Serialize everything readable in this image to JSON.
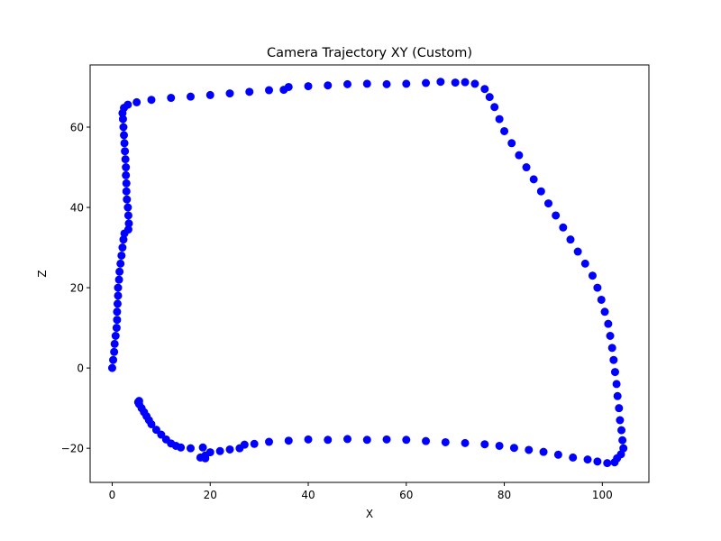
{
  "chart_data": {
    "type": "scatter",
    "title": "Camera Trajectory XY (Custom)",
    "xlabel": "X",
    "ylabel": "Z",
    "xlim": [
      -4.5,
      109.5
    ],
    "ylim": [
      -28.5,
      75.5
    ],
    "xticks": [
      0,
      20,
      40,
      60,
      80,
      100
    ],
    "yticks": [
      -20,
      0,
      20,
      40,
      60
    ],
    "grid": false,
    "legend": "none",
    "marker": "circle",
    "color": "#0000ff",
    "series": [
      {
        "points": [
          [
            0,
            0
          ],
          [
            0.2,
            2
          ],
          [
            0.4,
            4
          ],
          [
            0.5,
            6
          ],
          [
            0.7,
            8
          ],
          [
            0.9,
            10
          ],
          [
            1.0,
            12
          ],
          [
            1.0,
            14
          ],
          [
            1.1,
            16
          ],
          [
            1.2,
            18
          ],
          [
            1.2,
            20
          ],
          [
            1.4,
            22
          ],
          [
            1.5,
            24
          ],
          [
            1.7,
            26
          ],
          [
            1.9,
            28
          ],
          [
            2.1,
            30
          ],
          [
            2.3,
            32
          ],
          [
            2.5,
            33.5
          ],
          [
            3.3,
            34.5
          ],
          [
            3.4,
            36
          ],
          [
            3.3,
            38
          ],
          [
            3.2,
            40
          ],
          [
            3.0,
            42
          ],
          [
            2.9,
            44
          ],
          [
            2.9,
            46
          ],
          [
            2.8,
            48
          ],
          [
            2.8,
            50
          ],
          [
            2.7,
            52
          ],
          [
            2.6,
            54
          ],
          [
            2.5,
            56
          ],
          [
            2.4,
            58
          ],
          [
            2.3,
            60
          ],
          [
            2.2,
            62
          ],
          [
            2.1,
            63.5
          ],
          [
            2.4,
            64.8
          ],
          [
            3.2,
            65.6
          ],
          [
            5,
            66.2
          ],
          [
            8,
            66.8
          ],
          [
            12,
            67.3
          ],
          [
            16,
            67.6
          ],
          [
            20,
            68.0
          ],
          [
            24,
            68.4
          ],
          [
            28,
            68.8
          ],
          [
            32,
            69.2
          ],
          [
            35,
            69.3
          ],
          [
            36,
            70.0
          ],
          [
            40,
            70.2
          ],
          [
            44,
            70.4
          ],
          [
            48,
            70.7
          ],
          [
            52,
            70.8
          ],
          [
            56,
            70.7
          ],
          [
            60,
            70.8
          ],
          [
            64,
            71.0
          ],
          [
            67,
            71.3
          ],
          [
            70,
            71.1
          ],
          [
            72,
            71.2
          ],
          [
            74,
            70.8
          ],
          [
            76,
            69.5
          ],
          [
            77,
            67.5
          ],
          [
            78,
            65
          ],
          [
            79,
            62
          ],
          [
            80,
            59
          ],
          [
            81.5,
            56
          ],
          [
            83,
            53
          ],
          [
            84.5,
            50
          ],
          [
            86,
            47
          ],
          [
            87.5,
            44
          ],
          [
            89,
            41
          ],
          [
            90.5,
            38
          ],
          [
            92,
            35
          ],
          [
            93.5,
            32
          ],
          [
            95,
            29
          ],
          [
            96.5,
            26
          ],
          [
            98,
            23
          ],
          [
            99,
            20
          ],
          [
            99.8,
            17
          ],
          [
            100.5,
            14
          ],
          [
            101.2,
            11
          ],
          [
            101.6,
            8
          ],
          [
            102,
            5
          ],
          [
            102.3,
            2
          ],
          [
            102.6,
            -1
          ],
          [
            102.9,
            -4
          ],
          [
            103.1,
            -7
          ],
          [
            103.4,
            -10
          ],
          [
            103.6,
            -13
          ],
          [
            103.9,
            -15.5
          ],
          [
            104.1,
            -18
          ],
          [
            104.3,
            -20
          ],
          [
            103.8,
            -21.5
          ],
          [
            103,
            -22.5
          ],
          [
            102.5,
            -23.5
          ],
          [
            101,
            -23.7
          ],
          [
            99,
            -23.3
          ],
          [
            97,
            -22.8
          ],
          [
            94,
            -22.3
          ],
          [
            91,
            -21.6
          ],
          [
            88,
            -20.9
          ],
          [
            85,
            -20.4
          ],
          [
            82,
            -19.9
          ],
          [
            79,
            -19.4
          ],
          [
            76,
            -19.0
          ],
          [
            72,
            -18.7
          ],
          [
            68,
            -18.5
          ],
          [
            64,
            -18.2
          ],
          [
            60,
            -17.9
          ],
          [
            56,
            -17.8
          ],
          [
            52,
            -17.9
          ],
          [
            48,
            -17.7
          ],
          [
            44,
            -17.9
          ],
          [
            40,
            -17.8
          ],
          [
            36,
            -18.1
          ],
          [
            32,
            -18.4
          ],
          [
            29,
            -18.9
          ],
          [
            27,
            -19.1
          ],
          [
            26,
            -20.0
          ],
          [
            24,
            -20.3
          ],
          [
            22,
            -20.7
          ],
          [
            20,
            -21.0
          ],
          [
            19,
            -21.8
          ],
          [
            19,
            -22.5
          ],
          [
            18.5,
            -19.8
          ],
          [
            18,
            -22.3
          ],
          [
            16,
            -20.0
          ],
          [
            14,
            -19.8
          ],
          [
            13,
            -19.4
          ],
          [
            12,
            -18.8
          ],
          [
            11,
            -17.8
          ],
          [
            10,
            -16.6
          ],
          [
            9,
            -15.4
          ],
          [
            8,
            -14.0
          ],
          [
            7.5,
            -13.0
          ],
          [
            7,
            -12.0
          ],
          [
            6.5,
            -11.0
          ],
          [
            6,
            -10.0
          ],
          [
            5.5,
            -9.0
          ],
          [
            5.3,
            -8.5
          ],
          [
            5.5,
            -8.2
          ]
        ]
      }
    ]
  }
}
